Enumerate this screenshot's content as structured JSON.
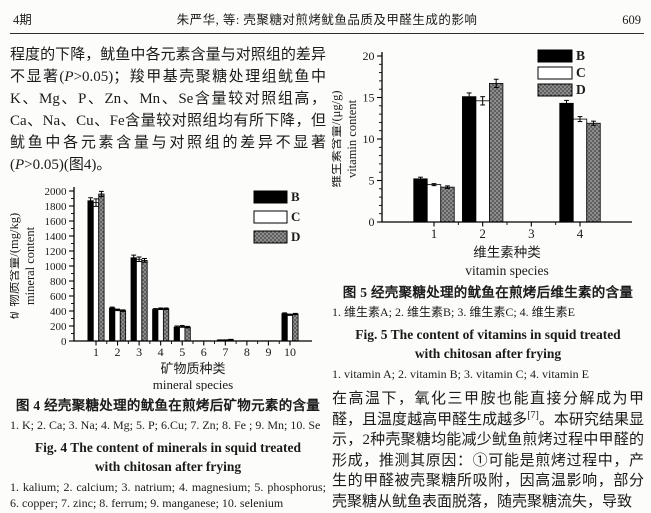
{
  "header": {
    "issue": "4期",
    "title": "朱严华, 等: 壳聚糖对煎烤鱿鱼品质及甲醛生成的影响",
    "page": "609"
  },
  "left_paragraph": {
    "seg1": "程度的下降，鱿鱼中各元素含量与对照组的差异不显著(",
    "p1": "P",
    "seg2": ">0.05)；羧甲基壳聚糖处理组鱿鱼中K、Mg、P、Zn、Mn、Se含量较对照组高，Ca、Na、Cu、Fe含量较对照组均有所下降，但鱿鱼中各元素含量与对照组的差异不显著(",
    "p2": "P",
    "seg3": ">0.05)(图4)。"
  },
  "right_paragraph": {
    "seg1": "在高温下，氧化三甲胺也能直接分解成为甲醛，且温度越高甲醛生成越多",
    "sup": "[7]",
    "seg2": "。本研究结果显示，2种壳聚糖均能减少鱿鱼煎烤过程中甲醛的形成，推测其原因：①可能是煎烤过程中，产生的甲醛被壳聚糖所吸附，因高温影响，部分壳聚糖从鱿鱼表面脱落，随壳聚糖流失，导致"
  },
  "fig4_caption": {
    "title_cn": "图 4  经壳聚糖处理的鱿鱼在煎烤后矿物元素的含量",
    "items_cn": "1. K; 2. Ca; 3. Na; 4. Mg; 5. P; 6.Cu; 7. Zn; 8. Fe ; 9. Mn; 10. Se",
    "title_en": "Fig. 4  The content of minerals in squid treated with chitosan after frying",
    "items_en": "1. kalium; 2. calcium; 3. natrium; 4. magnesium; 5. phosphorus; 6. copper; 7. zinc; 8. ferrum; 9. manganese; 10. selenium"
  },
  "fig5_caption": {
    "title_cn": "图 5  经壳聚糖处理的鱿鱼在煎烤后维生素的含量",
    "items_cn": "1. 维生素A; 2. 维生素B; 3. 维生素C; 4. 维生素E",
    "title_en": "Fig. 5  The content of vitamins in squid treated with chitosan after frying",
    "items_en": "1. vitamin A; 2. vitamin B; 3. vitamin C; 4. vitamin E"
  },
  "colors": {
    "text": "#1b1b1b",
    "axis": "#000000",
    "bar_b": "#000000",
    "bar_c": "#ffffff",
    "bar_d_base": "#8c8c8c",
    "bar_d_dot": "#3c3c3c",
    "paper": "#fcfcfa"
  },
  "chart_data": [
    {
      "id": "fig4",
      "type": "bar",
      "title": "",
      "categories": [
        "1",
        "2",
        "3",
        "4",
        "5",
        "6",
        "7",
        "8",
        "9",
        "10"
      ],
      "series": [
        {
          "name": "B",
          "fill": "#000000",
          "values": [
            1870,
            440,
            1110,
            420,
            185,
            2,
            12,
            2,
            2,
            365
          ],
          "errors": [
            40,
            12,
            35,
            12,
            15,
            0,
            3,
            0,
            0,
            10
          ]
        },
        {
          "name": "C",
          "fill": "#ffffff",
          "values": [
            1845,
            415,
            1090,
            430,
            195,
            2,
            12,
            2,
            2,
            350
          ],
          "errors": [
            50,
            10,
            30,
            10,
            12,
            0,
            3,
            0,
            0,
            8
          ]
        },
        {
          "name": "D",
          "fill": "speckle",
          "values": [
            1960,
            405,
            1075,
            430,
            185,
            2,
            18,
            2,
            2,
            360
          ],
          "errors": [
            35,
            10,
            25,
            10,
            10,
            0,
            4,
            0,
            0,
            8
          ]
        }
      ],
      "ylabel_cn": "矿物质含量/(mg/kg)",
      "ylabel_en": "mineral content",
      "xlabel_cn": "矿物质种类",
      "xlabel_en": "mineral species",
      "ylim": [
        0,
        2000
      ],
      "ytick_step": 200,
      "yminor_step": 100,
      "grid": false,
      "legend": [
        "B",
        "C",
        "D"
      ],
      "legend_position": "top-right"
    },
    {
      "id": "fig5",
      "type": "bar",
      "title": "",
      "categories": [
        "1",
        "2",
        "3",
        "4"
      ],
      "series": [
        {
          "name": "B",
          "fill": "#000000",
          "values": [
            5.2,
            15.1,
            0,
            14.3
          ],
          "errors": [
            0.2,
            0.45,
            0,
            0.35
          ]
        },
        {
          "name": "C",
          "fill": "#ffffff",
          "values": [
            4.5,
            14.6,
            0,
            12.4
          ],
          "errors": [
            0.12,
            0.5,
            0,
            0.3
          ]
        },
        {
          "name": "D",
          "fill": "speckle",
          "values": [
            4.2,
            16.7,
            0,
            11.9
          ],
          "errors": [
            0.15,
            0.5,
            0,
            0.25
          ]
        }
      ],
      "ylabel_cn": "维生素含量/(μg/g)",
      "ylabel_en": "vitamin content",
      "xlabel_cn": "维生素种类",
      "xlabel_en": "vitamin species",
      "ylim": [
        0,
        20
      ],
      "ytick_step": 5,
      "yminor_step": 1,
      "grid": false,
      "legend": [
        "B",
        "C",
        "D"
      ],
      "legend_position": "top-right"
    }
  ]
}
